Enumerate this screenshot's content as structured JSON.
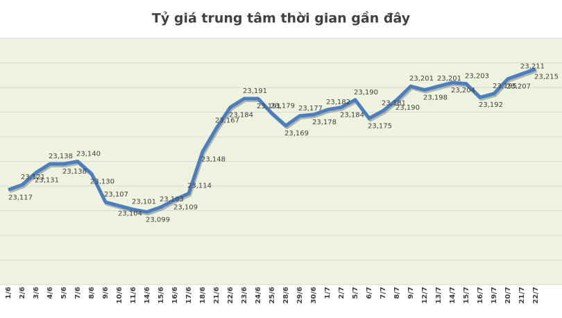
{
  "chart_data": {
    "type": "line",
    "title": "Tỷ giá trung tâm thời gian gần đây",
    "categories": [
      "1/6",
      "2/6",
      "3/6",
      "4/6",
      "5/6",
      "7/6",
      "8/6",
      "9/6",
      "10/6",
      "11/6",
      "14/6",
      "15/6",
      "16/6",
      "17/6",
      "18/6",
      "21/6",
      "22/6",
      "23/6",
      "24/6",
      "25/6",
      "28/6",
      "29/6",
      "30/6",
      "1/7",
      "2/7",
      "5/7",
      "6/7",
      "7/7",
      "8/7",
      "9/7",
      "12/7",
      "13/7",
      "14/7",
      "15/7",
      "16/7",
      "19/7",
      "20/7",
      "21/7",
      "22/7"
    ],
    "series": [
      {
        "name": "Tỷ giá trung tâm",
        "color": "#4a7ec0",
        "values": [
          23117,
          23121,
          23131,
          23138,
          23138,
          23140,
          23130,
          23107,
          23104,
          23101,
          23099,
          23103,
          23109,
          23114,
          23148,
          23167,
          23184,
          23191,
          23191,
          23179,
          23169,
          23177,
          23178,
          23182,
          23184,
          23190,
          23175,
          23181,
          23190,
          23201,
          23198,
          23201,
          23204,
          23203,
          23192,
          23195,
          23207,
          23211,
          23215
        ],
        "value_labels": [
          "23,117",
          "23,121",
          "23,131",
          "23,138",
          "23,138",
          "23,140",
          "23,130",
          "23,107",
          "23,104",
          "23,101",
          "23,099",
          "23,103",
          "23,109",
          "23,114",
          "23,148",
          "23,167",
          "23,184",
          "23,191",
          "23,191",
          "23,179",
          "23,169",
          "23,177",
          "23,178",
          "23,182",
          "23,184",
          "23,190",
          "23,175",
          "23,181",
          "23,190",
          "23,201",
          "23,198",
          "23,201",
          "23,204",
          "23,203",
          "23,192",
          "23,195",
          "23,207",
          "23,211",
          "23,215"
        ]
      }
    ],
    "ylim": [
      23040,
      23240
    ],
    "yticks": [
      23040,
      23060,
      23080,
      23100,
      23120,
      23140,
      23160,
      23180,
      23200,
      23220,
      23240
    ],
    "grid": true
  }
}
